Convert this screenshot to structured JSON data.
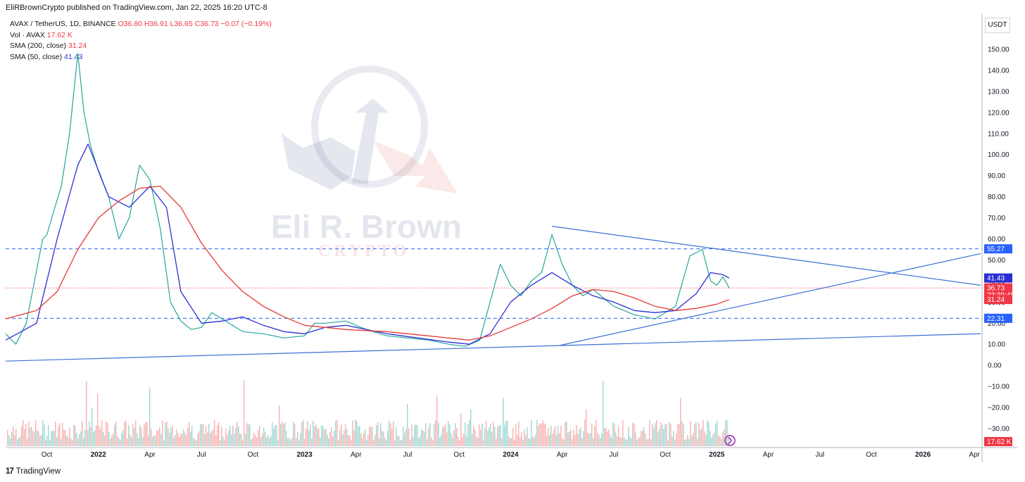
{
  "header": {
    "publisher": "EliRBrownCrypto published on TradingView.com, Jan 22, 2025 16:20 UTC-8"
  },
  "legend": {
    "symbol": "AVAX / TetherUS, 1D, BINANCE",
    "ohlc": "O36.80 H36.91 L36.65 C36.73 −0.07 (−0.19%)",
    "vol_label": "Vol · AVAX",
    "vol_value": "17.62 K",
    "sma200_label": "SMA (200, close)",
    "sma200_value": "31.24",
    "sma50_label": "SMA (50, close)",
    "sma50_value": "41.43"
  },
  "watermark": {
    "line1": "Eli R. Brown",
    "line2": "CRYPTO"
  },
  "footer": {
    "logo_mark": "17",
    "logo_text": "TradingView"
  },
  "chart_data": {
    "type": "line",
    "currency": "USDT",
    "y_ticks": [
      "150.00",
      "140.00",
      "130.00",
      "120.00",
      "110.00",
      "100.00",
      "90.00",
      "80.00",
      "70.00",
      "60.00",
      "50.00",
      "40.00",
      "30.00",
      "20.00",
      "10.00",
      "0.00",
      "−10.00",
      "−20.00",
      "−30.00"
    ],
    "y_tick_values": [
      150,
      140,
      130,
      120,
      110,
      100,
      90,
      80,
      70,
      60,
      50,
      40,
      30,
      20,
      10,
      0,
      -10,
      -20,
      -30
    ],
    "x_ticks": [
      "Oct",
      "2022",
      "Apr",
      "Jul",
      "Oct",
      "2023",
      "Apr",
      "Jul",
      "Oct",
      "2024",
      "Apr",
      "Jul",
      "Oct",
      "2025",
      "Apr",
      "Jul",
      "Oct",
      "2026",
      "Apr"
    ],
    "x_tick_values": [
      2021.75,
      2022.0,
      2022.25,
      2022.5,
      2022.75,
      2023.0,
      2023.25,
      2023.5,
      2023.75,
      2024.0,
      2024.25,
      2024.5,
      2024.75,
      2025.0,
      2025.25,
      2025.5,
      2025.75,
      2026.0,
      2026.25
    ],
    "x_range": [
      2021.55,
      2026.28
    ],
    "y_range": [
      -37,
      158
    ],
    "price_badges": [
      {
        "label": "55.27",
        "value": 55.27,
        "color": "#2962ff"
      },
      {
        "label": "41.43",
        "value": 41.43,
        "color": "#2a2ed6"
      },
      {
        "label": "36.73",
        "value": 36.73,
        "color": "#f23645"
      },
      {
        "label": "23:39:49",
        "value": 33.4,
        "color": "#f23645"
      },
      {
        "label": "31.24",
        "value": 31.24,
        "color": "#f23645"
      },
      {
        "label": "22.31",
        "value": 22.31,
        "color": "#2962ff"
      },
      {
        "label": "17.62 K",
        "value": -36.2,
        "color": "#f23645"
      }
    ],
    "horizontal_levels": [
      {
        "value": 55.27,
        "style": "dashed",
        "color": "#2962ff"
      },
      {
        "value": 22.31,
        "style": "dashed",
        "color": "#2962ff"
      },
      {
        "value": 36.73,
        "style": "dotted",
        "color": "#f23645"
      }
    ],
    "trendlines": [
      {
        "name": "",
        "x": [
          2021.55,
          2026.28
        ],
        "y": [
          2,
          15
        ]
      },
      {
        "name": "",
        "x": [
          2024.2,
          2026.28
        ],
        "y": [
          66,
          38
        ]
      },
      {
        "name": "",
        "x": [
          2024.24,
          2026.28
        ],
        "y": [
          9.5,
          53
        ]
      }
    ],
    "series": [
      {
        "name": "AVAX / TetherUS",
        "color": "#26a69a",
        "x": [
          2021.55,
          2021.6,
          2021.65,
          2021.7,
          2021.73,
          2021.75,
          2021.78,
          2021.82,
          2021.86,
          2021.9,
          2021.93,
          2021.96,
          2022.0,
          2022.05,
          2022.1,
          2022.15,
          2022.2,
          2022.25,
          2022.3,
          2022.35,
          2022.4,
          2022.45,
          2022.5,
          2022.55,
          2022.6,
          2022.65,
          2022.7,
          2022.8,
          2022.9,
          2023.0,
          2023.05,
          2023.1,
          2023.2,
          2023.3,
          2023.4,
          2023.5,
          2023.6,
          2023.7,
          2023.78,
          2023.85,
          2023.9,
          2023.95,
          2024.0,
          2024.05,
          2024.1,
          2024.15,
          2024.2,
          2024.25,
          2024.3,
          2024.35,
          2024.4,
          2024.5,
          2024.6,
          2024.7,
          2024.8,
          2024.87,
          2024.93,
          2024.97,
          2025.0,
          2025.03,
          2025.06
        ],
        "y": [
          15,
          10,
          20,
          45,
          60,
          62,
          72,
          85,
          110,
          148,
          120,
          105,
          92,
          80,
          60,
          70,
          95,
          88,
          65,
          30,
          21,
          17,
          18,
          25,
          22,
          19,
          16,
          15,
          13,
          14,
          20,
          20,
          21,
          17,
          14,
          13,
          12,
          10,
          9,
          12,
          30,
          48,
          38,
          33,
          40,
          44,
          62,
          48,
          38,
          33,
          36,
          28,
          24,
          22,
          28,
          52,
          55,
          40,
          38,
          42,
          36.7
        ]
      },
      {
        "name": "SMA (50, close)",
        "color": "#2a2ed6",
        "x": [
          2021.55,
          2021.7,
          2021.8,
          2021.9,
          2021.95,
          2022.05,
          2022.15,
          2022.25,
          2022.33,
          2022.4,
          2022.5,
          2022.6,
          2022.7,
          2022.8,
          2022.9,
          2023.0,
          2023.1,
          2023.2,
          2023.3,
          2023.4,
          2023.55,
          2023.7,
          2023.8,
          2023.9,
          2024.0,
          2024.1,
          2024.2,
          2024.3,
          2024.4,
          2024.5,
          2024.6,
          2024.7,
          2024.8,
          2024.9,
          2024.97,
          2025.03,
          2025.06
        ],
        "y": [
          12,
          20,
          60,
          95,
          105,
          80,
          75,
          85,
          75,
          35,
          20,
          21,
          23,
          19,
          16,
          15,
          18,
          19,
          17,
          15,
          13,
          11,
          10,
          15,
          30,
          38,
          44,
          38,
          33,
          30,
          26,
          25,
          26,
          34,
          44,
          43,
          41.4
        ]
      },
      {
        "name": "SMA (200, close)",
        "color": "#e53935",
        "x": [
          2021.55,
          2021.7,
          2021.8,
          2021.9,
          2022.0,
          2022.1,
          2022.2,
          2022.3,
          2022.4,
          2022.5,
          2022.6,
          2022.7,
          2022.8,
          2022.9,
          2023.0,
          2023.2,
          2023.4,
          2023.6,
          2023.8,
          2023.9,
          2024.0,
          2024.1,
          2024.2,
          2024.3,
          2024.4,
          2024.5,
          2024.6,
          2024.7,
          2024.8,
          2024.9,
          2025.0,
          2025.06
        ],
        "y": [
          22,
          26,
          35,
          55,
          70,
          78,
          84,
          85,
          75,
          58,
          45,
          35,
          28,
          23,
          19,
          17,
          16,
          14,
          12,
          14,
          18,
          22,
          27,
          33,
          36,
          35,
          32,
          28,
          26,
          27,
          29,
          31.2
        ]
      }
    ]
  }
}
